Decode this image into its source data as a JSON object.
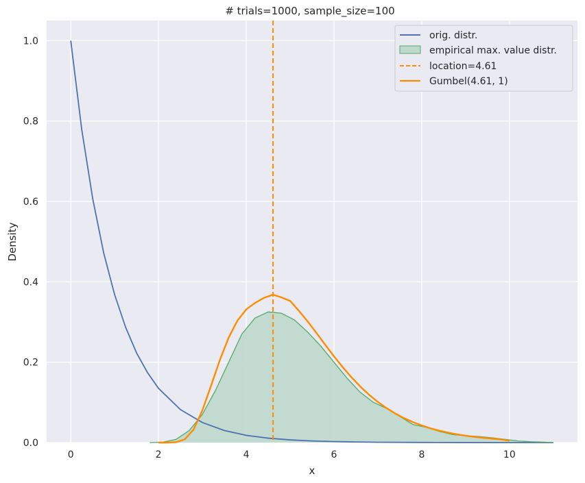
{
  "chart_data": {
    "type": "line",
    "title": "# trials=1000, sample_size=100",
    "xlabel": "x",
    "ylabel": "Density",
    "xlim": [
      -0.55,
      11.55
    ],
    "ylim": [
      0,
      1.05
    ],
    "grid": true,
    "legend_position": "top-right",
    "x_ticks": [
      0,
      2,
      4,
      6,
      8,
      10
    ],
    "y_ticks": [
      0.0,
      0.2,
      0.4,
      0.6,
      0.8,
      1.0
    ],
    "x_tick_labels": [
      "0",
      "2",
      "4",
      "6",
      "8",
      "10"
    ],
    "y_tick_labels": [
      "0.0",
      "0.2",
      "0.4",
      "0.6",
      "0.8",
      "1.0"
    ],
    "colors": {
      "background": "#eaeaf2",
      "grid": "#ffffff",
      "orig": "#4c72b0",
      "empirical_line": "#55a868",
      "empirical_fill": "#c0d9cd",
      "location": "#ff8c00",
      "gumbel": "#ff8c00"
    },
    "series": [
      {
        "name": "orig. distr.",
        "kind": "line",
        "color": "#4c72b0",
        "x": [
          0,
          0.25,
          0.5,
          0.75,
          1,
          1.25,
          1.5,
          1.75,
          2,
          2.5,
          3,
          3.5,
          4,
          4.5,
          5,
          5.5,
          6,
          6.5,
          7,
          8,
          9,
          10,
          11
        ],
        "y": [
          1.0,
          0.779,
          0.607,
          0.472,
          0.368,
          0.287,
          0.223,
          0.174,
          0.135,
          0.082,
          0.05,
          0.03,
          0.018,
          0.011,
          0.0067,
          0.0041,
          0.0025,
          0.0015,
          0.0009,
          0.0003,
          0.0001,
          0.0,
          0.0
        ]
      },
      {
        "name": "empirical max. value distr.",
        "kind": "area",
        "color": "#55a868",
        "x": [
          1.8,
          2.1,
          2.4,
          2.7,
          3.0,
          3.3,
          3.6,
          3.9,
          4.2,
          4.5,
          4.8,
          5.1,
          5.4,
          5.7,
          6.0,
          6.3,
          6.6,
          6.9,
          7.2,
          7.5,
          7.8,
          8.1,
          8.4,
          8.7,
          9.0,
          9.3,
          9.6,
          9.9,
          10.2,
          10.5,
          10.8,
          11.0
        ],
        "y": [
          0.0,
          0.001,
          0.008,
          0.03,
          0.07,
          0.13,
          0.2,
          0.27,
          0.31,
          0.325,
          0.322,
          0.305,
          0.275,
          0.24,
          0.2,
          0.16,
          0.125,
          0.1,
          0.085,
          0.065,
          0.045,
          0.038,
          0.028,
          0.02,
          0.017,
          0.015,
          0.012,
          0.008,
          0.004,
          0.002,
          0.001,
          0.0
        ]
      },
      {
        "name": "location=4.61",
        "kind": "vline",
        "color": "#ff8c00",
        "x": 4.61
      },
      {
        "name": "Gumbel(4.61, 1)",
        "kind": "line",
        "color": "#ff8c00",
        "x": [
          2.0,
          2.2,
          2.4,
          2.6,
          2.8,
          3.0,
          3.2,
          3.4,
          3.6,
          3.8,
          4.0,
          4.2,
          4.4,
          4.61,
          4.8,
          5.0,
          5.2,
          5.4,
          5.6,
          5.8,
          6.0,
          6.2,
          6.4,
          6.6,
          6.8,
          7.0,
          7.2,
          7.4,
          7.6,
          7.8,
          8.0,
          8.2,
          8.4,
          8.6,
          8.8,
          9.0,
          9.2,
          9.4,
          9.6,
          9.8,
          10.0
        ],
        "y": [
          0.0,
          2e-05,
          0.00096,
          0.0081,
          0.0325,
          0.0801,
          0.1422,
          0.2059,
          0.2614,
          0.3036,
          0.3314,
          0.3474,
          0.3599,
          0.3679,
          0.3613,
          0.3525,
          0.3278,
          0.3015,
          0.2728,
          0.2434,
          0.2146,
          0.1874,
          0.1622,
          0.1394,
          0.119,
          0.1011,
          0.0856,
          0.0722,
          0.0607,
          0.0509,
          0.0426,
          0.0356,
          0.0297,
          0.0248,
          0.0206,
          0.0171,
          0.0142,
          0.0118,
          0.0098,
          0.0081,
          0.0045
        ]
      }
    ]
  }
}
